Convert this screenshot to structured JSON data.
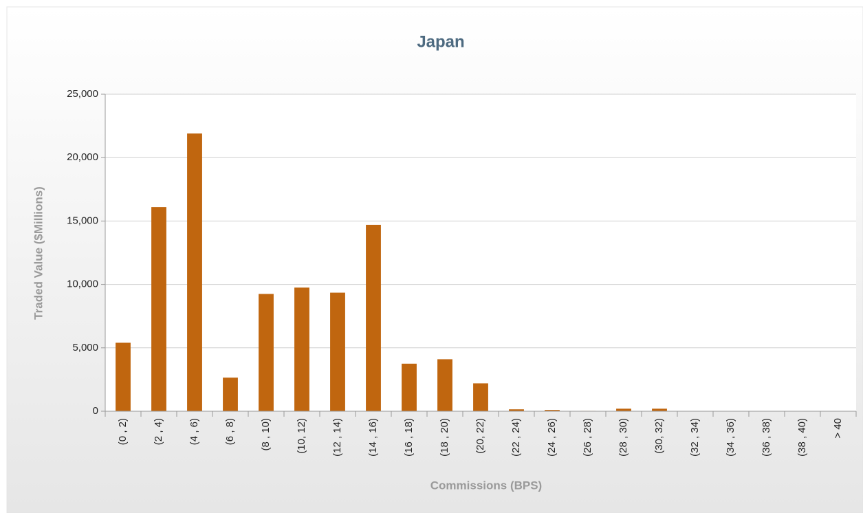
{
  "chart_data": {
    "type": "bar",
    "title": "Japan",
    "x_label": "Commissions (BPS)",
    "y_label": "Traded Value ($Millions)",
    "categories": [
      "(0 , 2)",
      "(2 , 4)",
      "(4 , 6)",
      "(6 , 8)",
      "(8 , 10)",
      "(10, 12)",
      "(12 , 14)",
      "(14 , 16)",
      "(16 , 18)",
      "(18 , 20)",
      "(20, 22)",
      "(22 , 24)",
      "(24 , 26)",
      "(26 , 28)",
      "(28 , 30)",
      "(30, 32)",
      "(32 , 34)",
      "(34 , 36)",
      "(36 , 38)",
      "(38 , 40)",
      "> 40"
    ],
    "values": [
      5400,
      16100,
      21900,
      2650,
      9250,
      9750,
      9350,
      14700,
      3750,
      4100,
      2200,
      150,
      100,
      30,
      200,
      200,
      20,
      20,
      20,
      20,
      20
    ],
    "color": "#c0660f",
    "ylim": [
      0,
      25000
    ],
    "yticks": [
      0,
      {
        "value": 5000,
        "label": "5,000"
      },
      {
        "value": 10000,
        "label": "10,000"
      },
      {
        "value": 15000,
        "label": "15,000"
      },
      {
        "value": 20000,
        "label": "20,000"
      },
      {
        "value": 25000,
        "label": "25,000"
      }
    ],
    "grid": true
  }
}
